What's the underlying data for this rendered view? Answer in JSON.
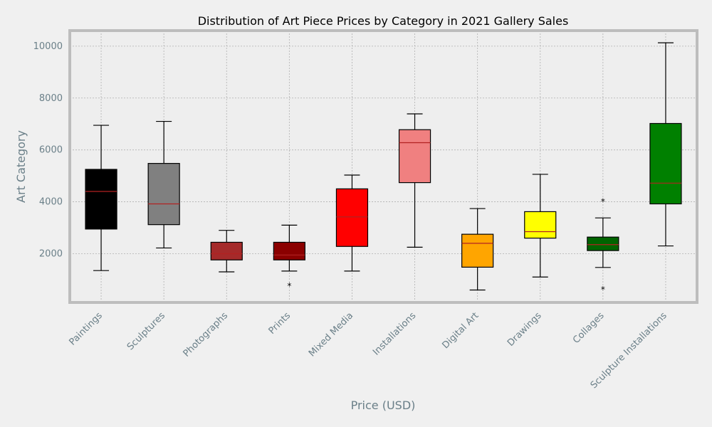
{
  "chart_data": {
    "type": "box",
    "title": "Distribution of Art Piece Prices by Category in 2021 Gallery Sales",
    "xlabel": "Price (USD)",
    "ylabel": "Art Category",
    "ylim": [
      120,
      10600
    ],
    "yticks": [
      2000,
      4000,
      6000,
      8000,
      10000
    ],
    "grid": true,
    "categories": [
      "Paintings",
      "Sculptures",
      "Photographs",
      "Prints",
      "Mixed Media",
      "Installations",
      "Digital Art",
      "Drawings",
      "Collages",
      "Sculpture Installations"
    ],
    "boxes": [
      {
        "name": "Paintings",
        "whisker_low": 1350,
        "q1": 2950,
        "median": 4400,
        "q3": 5250,
        "whisker_high": 6950,
        "outliers": [],
        "color": "#000000"
      },
      {
        "name": "Sculptures",
        "whisker_low": 2220,
        "q1": 3120,
        "median": 3920,
        "q3": 5480,
        "whisker_high": 7100,
        "outliers": [],
        "color": "#808080"
      },
      {
        "name": "Photographs",
        "whisker_low": 1300,
        "q1": 1760,
        "median": 2000,
        "q3": 2440,
        "whisker_high": 2900,
        "outliers": [],
        "color": "#a52a2a"
      },
      {
        "name": "Prints",
        "whisker_low": 1330,
        "q1": 1760,
        "median": 1950,
        "q3": 2440,
        "whisker_high": 3100,
        "outliers": [
          750
        ],
        "color": "#8b0000"
      },
      {
        "name": "Mixed Media",
        "whisker_low": 1330,
        "q1": 2280,
        "median": 3420,
        "q3": 4500,
        "whisker_high": 5030,
        "outliers": [],
        "color": "#ff0000"
      },
      {
        "name": "Installations",
        "whisker_low": 2250,
        "q1": 4740,
        "median": 6280,
        "q3": 6780,
        "whisker_high": 7390,
        "outliers": [],
        "color": "#f08080"
      },
      {
        "name": "Digital Art",
        "whisker_low": 600,
        "q1": 1480,
        "median": 2400,
        "q3": 2750,
        "whisker_high": 3740,
        "outliers": [],
        "color": "#ffa500"
      },
      {
        "name": "Drawings",
        "whisker_low": 1100,
        "q1": 2600,
        "median": 2850,
        "q3": 3620,
        "whisker_high": 5060,
        "outliers": [],
        "color": "#ffff00"
      },
      {
        "name": "Collages",
        "whisker_low": 1470,
        "q1": 2120,
        "median": 2350,
        "q3": 2640,
        "whisker_high": 3380,
        "outliers": [
          4000,
          620
        ],
        "color": "#006400"
      },
      {
        "name": "Sculpture Installations",
        "whisker_low": 2300,
        "q1": 3920,
        "median": 4720,
        "q3": 7020,
        "whisker_high": 10130,
        "outliers": [],
        "color": "#008000"
      }
    ]
  }
}
